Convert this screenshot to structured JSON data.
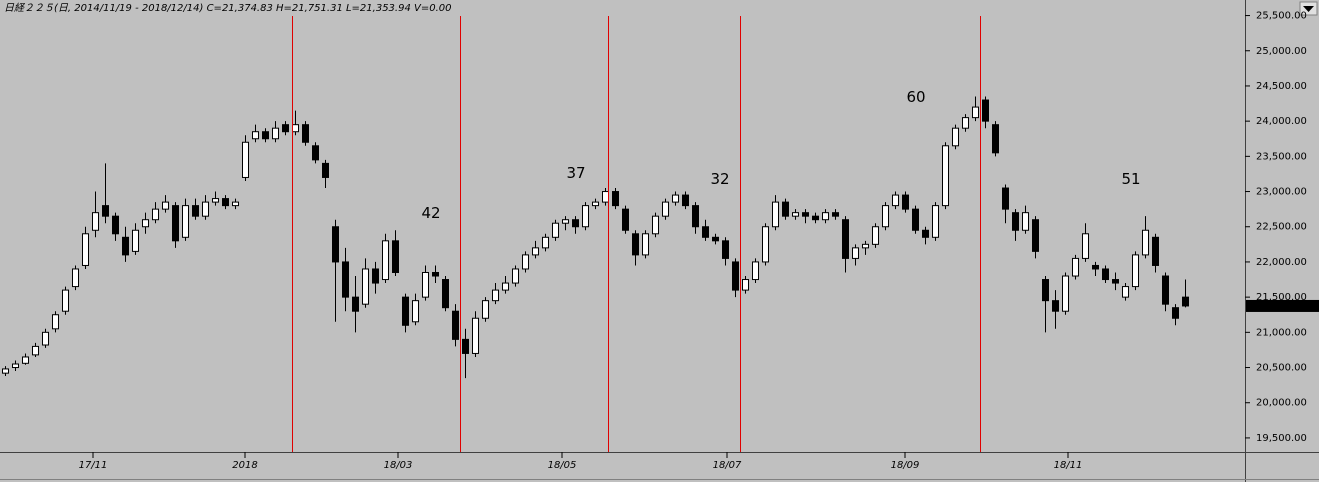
{
  "chart_data": {
    "type": "candlestick",
    "title": "日経２２５(日, 2014/11/19 - 2018/12/14)  C=21,374.83 H=21,751.31 L=21,353.94 V=0.00",
    "last_price_label": "21,374.83",
    "xlim": [
      -0.5,
      124
    ],
    "ylim": [
      19300,
      25650
    ],
    "xticks": [
      {
        "value": 8.8,
        "label": "17/11"
      },
      {
        "value": 24,
        "label": "2018"
      },
      {
        "value": 39.3,
        "label": "18/03"
      },
      {
        "value": 55.7,
        "label": "18/05"
      },
      {
        "value": 72.2,
        "label": "18/07"
      },
      {
        "value": 90,
        "label": "18/09"
      },
      {
        "value": 106.3,
        "label": "18/11"
      }
    ],
    "yticks": [
      {
        "value": 19500,
        "label": "19,500.00"
      },
      {
        "value": 20000,
        "label": "20,000.00"
      },
      {
        "value": 20500,
        "label": "20,500.00"
      },
      {
        "value": 21000,
        "label": "21,000.00"
      },
      {
        "value": 21500,
        "label": "21,500.00"
      },
      {
        "value": 22000,
        "label": "22,000.00"
      },
      {
        "value": 22500,
        "label": "22,500.00"
      },
      {
        "value": 23000,
        "label": "23,000.00"
      },
      {
        "value": 23500,
        "label": "23,500.00"
      },
      {
        "value": 24000,
        "label": "24,000.00"
      },
      {
        "value": 24500,
        "label": "24,500.00"
      },
      {
        "value": 25000,
        "label": "25,000.00"
      },
      {
        "value": 25500,
        "label": "25,500.00"
      }
    ],
    "vlines": [
      28.7,
      45.5,
      60.3,
      73.5,
      97.5
    ],
    "vline_color": "#e00000",
    "up_color": "#ffffff",
    "down_color": "#000000",
    "annotations": [
      {
        "text": "42",
        "x": 42.6,
        "y": 22685
      },
      {
        "text": "37",
        "x": 57.1,
        "y": 23253
      },
      {
        "text": "32",
        "x": 71.5,
        "y": 23168
      },
      {
        "text": "60",
        "x": 91.1,
        "y": 24334
      },
      {
        "text": "51",
        "x": 112.6,
        "y": 23168
      }
    ],
    "candles": [
      [
        20420,
        20520,
        20380,
        20480
      ],
      [
        20500,
        20600,
        20450,
        20550
      ],
      [
        20560,
        20700,
        20540,
        20650
      ],
      [
        20680,
        20850,
        20650,
        20800
      ],
      [
        20820,
        21050,
        20780,
        21000
      ],
      [
        21050,
        21300,
        21000,
        21250
      ],
      [
        21300,
        21650,
        21250,
        21600
      ],
      [
        21650,
        21950,
        21600,
        21900
      ],
      [
        21950,
        22500,
        21900,
        22400
      ],
      [
        22450,
        23000,
        22350,
        22700
      ],
      [
        22800,
        23400,
        22550,
        22650
      ],
      [
        22650,
        22700,
        22300,
        22400
      ],
      [
        22350,
        22500,
        22000,
        22100
      ],
      [
        22150,
        22550,
        22100,
        22450
      ],
      [
        22500,
        22700,
        22400,
        22600
      ],
      [
        22600,
        22850,
        22550,
        22750
      ],
      [
        22750,
        22950,
        22700,
        22850
      ],
      [
        22800,
        22850,
        22200,
        22300
      ],
      [
        22350,
        22900,
        22300,
        22800
      ],
      [
        22800,
        22900,
        22600,
        22650
      ],
      [
        22650,
        22950,
        22600,
        22850
      ],
      [
        22850,
        23000,
        22800,
        22900
      ],
      [
        22900,
        22950,
        22750,
        22800
      ],
      [
        22800,
        22900,
        22750,
        22850
      ],
      [
        23200,
        23800,
        23150,
        23700
      ],
      [
        23750,
        23950,
        23700,
        23850
      ],
      [
        23850,
        23900,
        23700,
        23750
      ],
      [
        23750,
        24000,
        23700,
        23900
      ],
      [
        23950,
        24000,
        23800,
        23850
      ],
      [
        23850,
        24150,
        23800,
        23950
      ],
      [
        23950,
        24000,
        23650,
        23700
      ],
      [
        23650,
        23700,
        23400,
        23450
      ],
      [
        23400,
        23450,
        23050,
        23200
      ],
      [
        22500,
        22600,
        21150,
        22000
      ],
      [
        22000,
        22200,
        21300,
        21500
      ],
      [
        21500,
        21800,
        21000,
        21300
      ],
      [
        21400,
        22050,
        21350,
        21900
      ],
      [
        21900,
        22000,
        21550,
        21700
      ],
      [
        21750,
        22400,
        21700,
        22300
      ],
      [
        22300,
        22450,
        21800,
        21850
      ],
      [
        21500,
        21550,
        21000,
        21100
      ],
      [
        21150,
        21550,
        21100,
        21450
      ],
      [
        21500,
        21950,
        21450,
        21850
      ],
      [
        21850,
        21950,
        21700,
        21800
      ],
      [
        21750,
        21800,
        21300,
        21350
      ],
      [
        21300,
        21400,
        20800,
        20900
      ],
      [
        20900,
        21050,
        20350,
        20700
      ],
      [
        20700,
        21300,
        20650,
        21200
      ],
      [
        21200,
        21500,
        21150,
        21450
      ],
      [
        21450,
        21700,
        21400,
        21600
      ],
      [
        21600,
        21800,
        21550,
        21700
      ],
      [
        21700,
        21950,
        21650,
        21900
      ],
      [
        21900,
        22150,
        21850,
        22100
      ],
      [
        22100,
        22300,
        22050,
        22200
      ],
      [
        22200,
        22400,
        22150,
        22350
      ],
      [
        22350,
        22600,
        22300,
        22550
      ],
      [
        22550,
        22650,
        22450,
        22600
      ],
      [
        22600,
        22650,
        22400,
        22500
      ],
      [
        22500,
        22850,
        22450,
        22800
      ],
      [
        22800,
        22900,
        22750,
        22850
      ],
      [
        22850,
        23050,
        22800,
        23000
      ],
      [
        23000,
        23050,
        22750,
        22800
      ],
      [
        22750,
        22800,
        22400,
        22450
      ],
      [
        22400,
        22450,
        21950,
        22100
      ],
      [
        22100,
        22450,
        22050,
        22400
      ],
      [
        22400,
        22700,
        22350,
        22650
      ],
      [
        22650,
        22900,
        22600,
        22850
      ],
      [
        22850,
        23000,
        22800,
        22950
      ],
      [
        22950,
        23000,
        22750,
        22800
      ],
      [
        22800,
        22850,
        22400,
        22500
      ],
      [
        22500,
        22600,
        22300,
        22350
      ],
      [
        22350,
        22400,
        22250,
        22300
      ],
      [
        22300,
        22350,
        21950,
        22050
      ],
      [
        22000,
        22050,
        21500,
        21600
      ],
      [
        21600,
        21800,
        21550,
        21750
      ],
      [
        21750,
        22050,
        21700,
        22000
      ],
      [
        22000,
        22550,
        21950,
        22500
      ],
      [
        22500,
        22950,
        22450,
        22850
      ],
      [
        22850,
        22900,
        22600,
        22650
      ],
      [
        22650,
        22750,
        22600,
        22700
      ],
      [
        22700,
        22750,
        22550,
        22650
      ],
      [
        22650,
        22700,
        22550,
        22600
      ],
      [
        22600,
        22750,
        22550,
        22700
      ],
      [
        22700,
        22750,
        22600,
        22650
      ],
      [
        22600,
        22650,
        21850,
        22050
      ],
      [
        22050,
        22250,
        21950,
        22200
      ],
      [
        22200,
        22300,
        22100,
        22250
      ],
      [
        22250,
        22550,
        22200,
        22500
      ],
      [
        22500,
        22850,
        22450,
        22800
      ],
      [
        22800,
        23000,
        22750,
        22950
      ],
      [
        22950,
        23000,
        22700,
        22750
      ],
      [
        22750,
        22800,
        22400,
        22450
      ],
      [
        22450,
        22500,
        22250,
        22350
      ],
      [
        22350,
        22850,
        22300,
        22800
      ],
      [
        22800,
        23700,
        22750,
        23650
      ],
      [
        23650,
        23950,
        23600,
        23900
      ],
      [
        23900,
        24100,
        23850,
        24050
      ],
      [
        24050,
        24350,
        24000,
        24200
      ],
      [
        24300,
        24350,
        23900,
        24000
      ],
      [
        23950,
        24000,
        23500,
        23550
      ],
      [
        23050,
        23100,
        22550,
        22750
      ],
      [
        22700,
        22750,
        22300,
        22450
      ],
      [
        22450,
        22800,
        22400,
        22700
      ],
      [
        22600,
        22650,
        22050,
        22150
      ],
      [
        21750,
        21800,
        21000,
        21450
      ],
      [
        21450,
        21600,
        21050,
        21300
      ],
      [
        21300,
        21850,
        21250,
        21800
      ],
      [
        21800,
        22100,
        21750,
        22050
      ],
      [
        22050,
        22550,
        22000,
        22400
      ],
      [
        21950,
        22000,
        21800,
        21900
      ],
      [
        21900,
        21950,
        21700,
        21750
      ],
      [
        21750,
        21850,
        21600,
        21700
      ],
      [
        21500,
        21700,
        21450,
        21650
      ],
      [
        21650,
        22150,
        21600,
        22100
      ],
      [
        22100,
        22650,
        22050,
        22450
      ],
      [
        22350,
        22400,
        21850,
        21950
      ],
      [
        21800,
        21850,
        21300,
        21400
      ],
      [
        21350,
        21400,
        21100,
        21200
      ],
      [
        21500,
        21751.31,
        21353.94,
        21374.83
      ]
    ]
  }
}
